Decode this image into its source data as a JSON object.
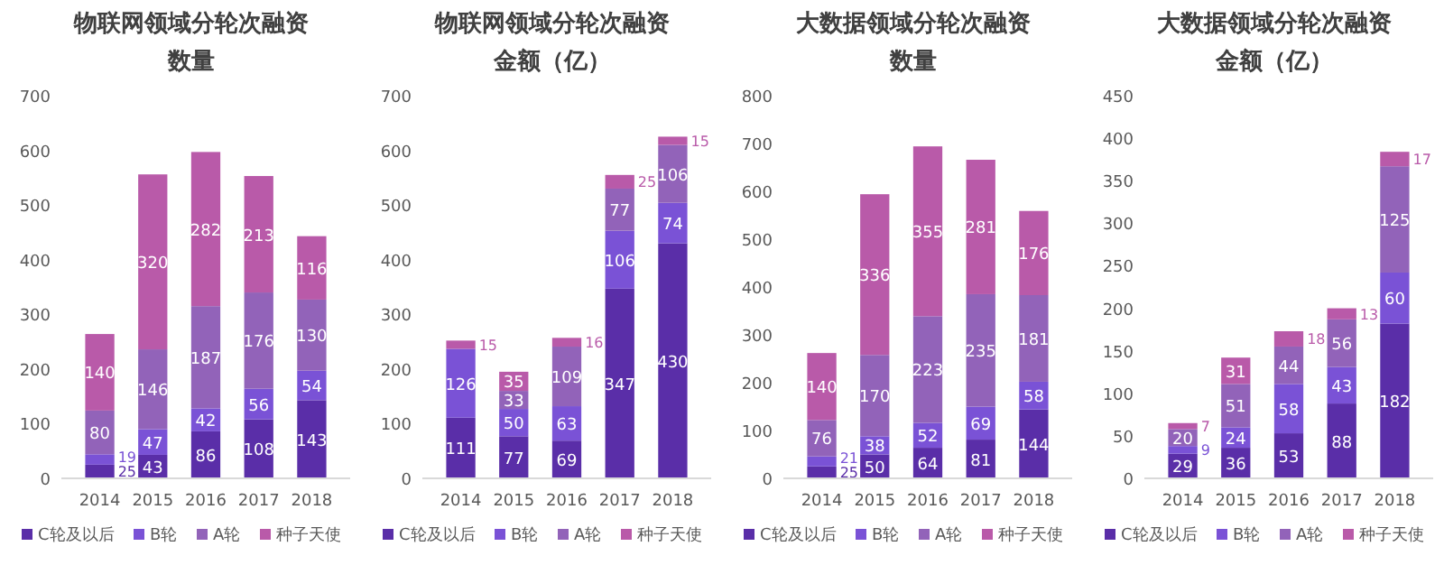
{
  "chart_data": [
    {
      "type": "bar",
      "title": "物联网领域分轮次融资数量",
      "categories": [
        "2014",
        "2015",
        "2016",
        "2017",
        "2018"
      ],
      "stacked": true,
      "data_labels": true,
      "legend": "bottom",
      "ylim": [
        0,
        700
      ],
      "yticks": [
        0,
        100,
        200,
        300,
        400,
        500,
        600,
        700
      ],
      "series": [
        {
          "name": "C轮及以后",
          "color": "#5a2ea8",
          "values": [
            25,
            43,
            86,
            108,
            143
          ]
        },
        {
          "name": "B轮",
          "color": "#7a52d6",
          "values": [
            19,
            47,
            42,
            56,
            54
          ]
        },
        {
          "name": "A轮",
          "color": "#9263b9",
          "values": [
            80,
            146,
            187,
            176,
            130
          ]
        },
        {
          "name": "种子天使",
          "color": "#b95aa9",
          "values": [
            140,
            320,
            282,
            213,
            116
          ]
        }
      ]
    },
    {
      "type": "bar",
      "title": "物联网领域分轮次融资金额（亿）",
      "categories": [
        "2014",
        "2015",
        "2016",
        "2017",
        "2018"
      ],
      "stacked": true,
      "data_labels": true,
      "legend": "bottom",
      "ylim": [
        0,
        700
      ],
      "yticks": [
        0,
        100,
        200,
        300,
        400,
        500,
        600,
        700
      ],
      "series": [
        {
          "name": "C轮及以后",
          "color": "#5a2ea8",
          "values": [
            111,
            77,
            69,
            347,
            430
          ]
        },
        {
          "name": "B轮",
          "color": "#7a52d6",
          "values": [
            126,
            50,
            63,
            106,
            74
          ]
        },
        {
          "name": "A轮",
          "color": "#9263b9",
          "values": [
            null,
            33,
            109,
            77,
            106
          ]
        },
        {
          "name": "种子天使",
          "color": "#b95aa9",
          "values": [
            15,
            35,
            16,
            25,
            15
          ]
        }
      ]
    },
    {
      "type": "bar",
      "title": "大数据领域分轮次融资数量",
      "categories": [
        "2014",
        "2015",
        "2016",
        "2017",
        "2018"
      ],
      "stacked": true,
      "data_labels": true,
      "legend": "bottom",
      "ylim": [
        0,
        800
      ],
      "yticks": [
        0,
        100,
        200,
        300,
        400,
        500,
        600,
        700,
        800
      ],
      "series": [
        {
          "name": "C轮及以后",
          "color": "#5a2ea8",
          "values": [
            25,
            50,
            64,
            81,
            144
          ]
        },
        {
          "name": "B轮",
          "color": "#7a52d6",
          "values": [
            21,
            38,
            52,
            69,
            58
          ]
        },
        {
          "name": "A轮",
          "color": "#9263b9",
          "values": [
            76,
            170,
            223,
            235,
            181
          ]
        },
        {
          "name": "种子天使",
          "color": "#b95aa9",
          "values": [
            140,
            336,
            355,
            281,
            176
          ]
        }
      ]
    },
    {
      "type": "bar",
      "title": "大数据领域分轮次融资金额（亿）",
      "categories": [
        "2014",
        "2015",
        "2016",
        "2017",
        "2018"
      ],
      "stacked": true,
      "data_labels": true,
      "legend": "bottom",
      "ylim": [
        0,
        450
      ],
      "yticks": [
        0,
        50,
        100,
        150,
        200,
        250,
        300,
        350,
        400,
        450
      ],
      "series": [
        {
          "name": "C轮及以后",
          "color": "#5a2ea8",
          "values": [
            29,
            36,
            53,
            88,
            182
          ]
        },
        {
          "name": "B轮",
          "color": "#7a52d6",
          "values": [
            9,
            24,
            58,
            43,
            60
          ]
        },
        {
          "name": "A轮",
          "color": "#9263b9",
          "values": [
            20,
            51,
            44,
            56,
            125
          ]
        },
        {
          "name": "种子天使",
          "color": "#b95aa9",
          "values": [
            7,
            31,
            18,
            13,
            17
          ]
        }
      ]
    }
  ]
}
